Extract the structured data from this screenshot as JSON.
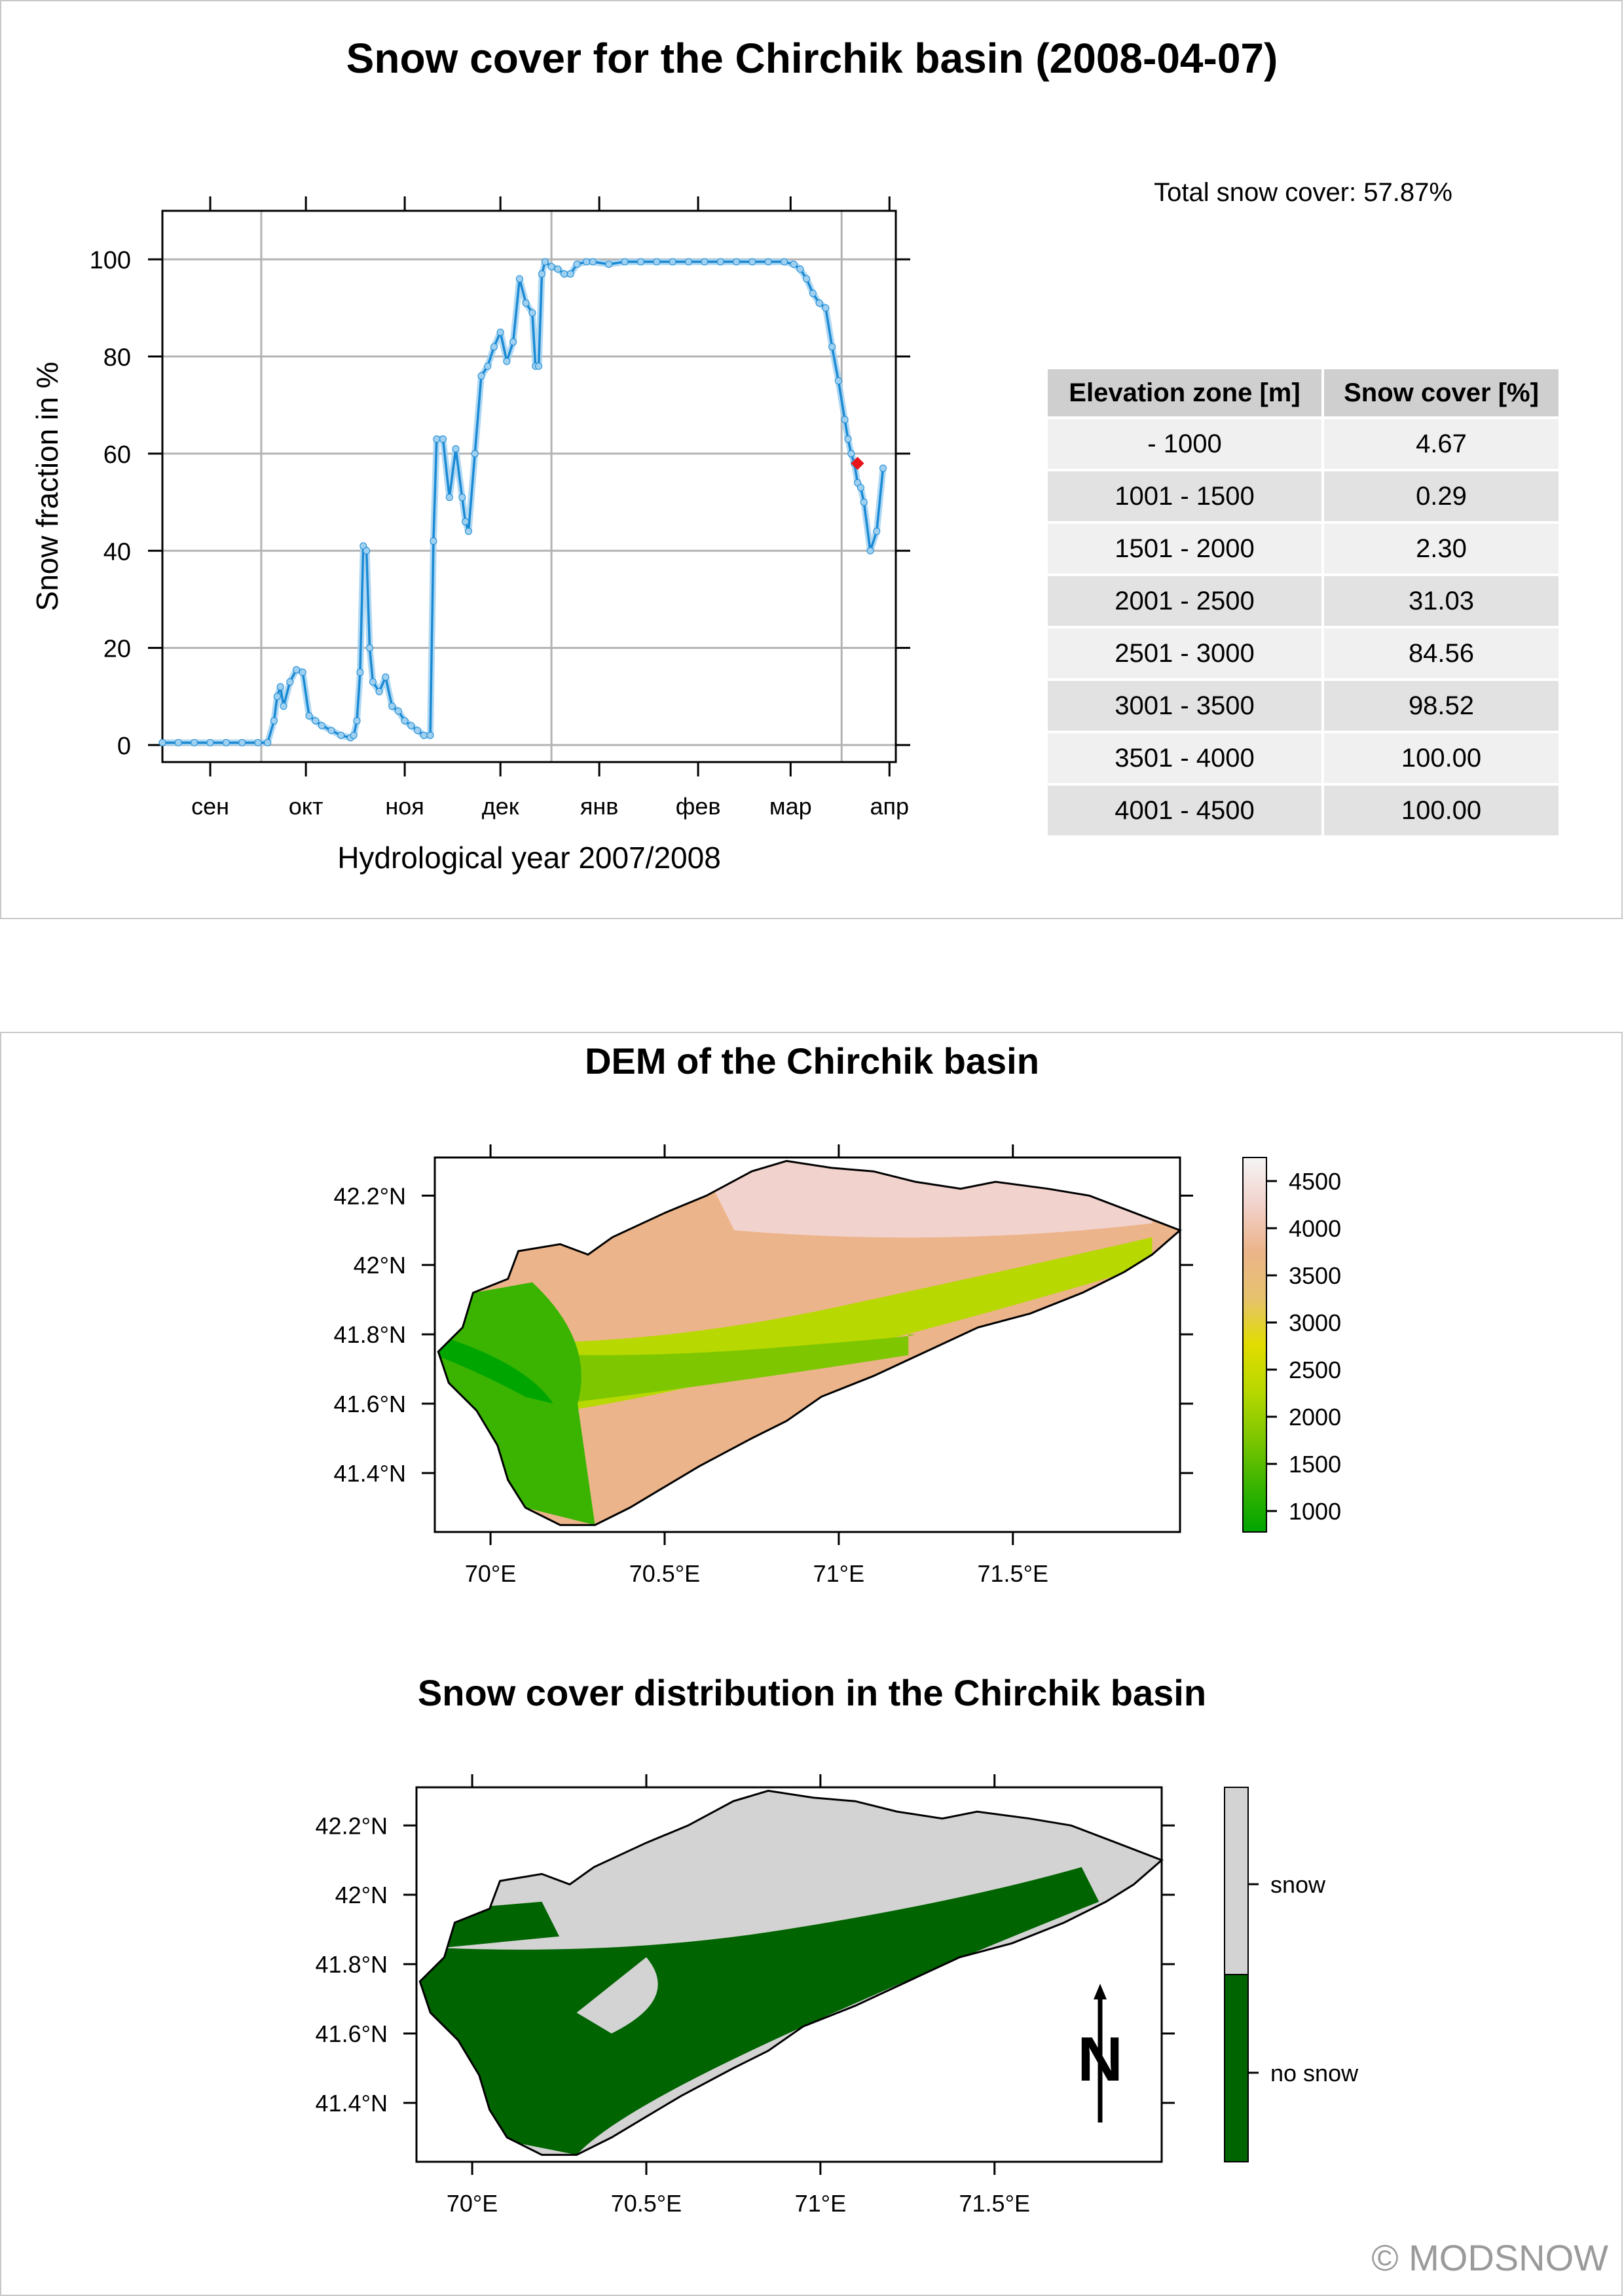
{
  "main_title": "Snow cover for the Chirchik basin (2008-04-07)",
  "total_snow_cover": "Total snow cover: 57.87%",
  "chart_data": [
    {
      "type": "line",
      "xlabel": "Hydrological year 2007/2008",
      "ylabel": "Snow fraction in %",
      "ylim": [
        0,
        110
      ],
      "yticks": [
        0,
        20,
        40,
        60,
        80,
        100
      ],
      "x_month_labels": [
        "сен",
        "окт",
        "ноя",
        "дек",
        "янв",
        "фев",
        "мар",
        "апр"
      ],
      "grid": true,
      "line_color": "#1a8ad4",
      "point_color": "#9fd0f0",
      "last_point_color": "#e8151b",
      "x_unit": "days since 2007-09-01",
      "series": [
        {
          "x": [
            0,
            5,
            10,
            15,
            20,
            25,
            30,
            33,
            35,
            36,
            37,
            38,
            40,
            42,
            44,
            46,
            48,
            50,
            53,
            56,
            59,
            60,
            61,
            62,
            63,
            64,
            65,
            66,
            68,
            70,
            72,
            74,
            76,
            78,
            80,
            82,
            84,
            85,
            86,
            88,
            90,
            92,
            94,
            95,
            96,
            98,
            100,
            102,
            104,
            106,
            108,
            110,
            112,
            114,
            116,
            117,
            118,
            119,
            120,
            122,
            124,
            126,
            128,
            130,
            133,
            135,
            140,
            145,
            150,
            155,
            160,
            165,
            170,
            175,
            180,
            185,
            190,
            195,
            198,
            200,
            202,
            204,
            206,
            208,
            210,
            212,
            214,
            215,
            216,
            217,
            218,
            219,
            220,
            222,
            224,
            226,
            218
          ],
          "y": [
            0.5,
            0.5,
            0.5,
            0.5,
            0.5,
            0.5,
            0.5,
            0.5,
            5,
            10,
            12,
            8,
            13,
            15.5,
            15,
            6,
            5,
            4,
            3,
            2,
            1.5,
            2,
            5,
            15,
            41,
            40,
            20,
            13,
            11,
            14,
            8,
            7,
            5,
            4,
            3,
            2,
            2,
            42,
            63,
            63,
            51,
            61,
            51,
            46,
            44,
            60,
            76,
            78,
            82,
            85,
            79,
            83,
            96,
            91,
            89,
            78,
            78,
            97,
            99.5,
            98.5,
            98,
            97,
            97,
            99,
            99.5,
            99.5,
            99,
            99.5,
            99.5,
            99.5,
            99.5,
            99.5,
            99.5,
            99.5,
            99.5,
            99.5,
            99.5,
            99.5,
            99,
            98,
            96,
            93,
            91,
            90,
            82,
            75,
            67,
            63,
            60,
            58,
            54,
            53,
            50,
            40,
            44,
            57,
            58
          ]
        }
      ]
    },
    {
      "type": "heatmap",
      "title": "DEM of the Chirchik basin",
      "x_tick_labels": [
        "70°E",
        "70.5°E",
        "71°E",
        "71.5°E"
      ],
      "y_tick_labels": [
        "42.2°N",
        "42°N",
        "41.8°N",
        "41.6°N",
        "41.4°N"
      ],
      "legend_ticks": [
        "4500",
        "4000",
        "3500",
        "3000",
        "2500",
        "2000",
        "1500",
        "1000"
      ],
      "colorscale": [
        "#00a500",
        "#3ab400",
        "#7ec600",
        "#b7d800",
        "#e1dc00",
        "#e6c26e",
        "#ecb48a",
        "#f2d2cc",
        "#f5f5f5"
      ]
    },
    {
      "type": "heatmap",
      "title": "Snow cover distribution in the Chirchik basin",
      "x_tick_labels": [
        "70°E",
        "70.5°E",
        "71°E",
        "71.5°E"
      ],
      "y_tick_labels": [
        "42.2°N",
        "42°N",
        "41.8°N",
        "41.6°N",
        "41.4°N"
      ],
      "legend": [
        {
          "label": "snow",
          "color": "#d3d3d3"
        },
        {
          "label": "no snow",
          "color": "#006400"
        }
      ],
      "north_arrow_label": "N"
    }
  ],
  "table": {
    "headers": [
      "Elevation zone [m]",
      "Snow cover [%]"
    ],
    "rows": [
      [
        "- 1000",
        "4.67"
      ],
      [
        "1001 - 1500",
        "0.29"
      ],
      [
        "1501 - 2000",
        "2.30"
      ],
      [
        "2001 - 2500",
        "31.03"
      ],
      [
        "2501 - 3000",
        "84.56"
      ],
      [
        "3001 - 3500",
        "98.52"
      ],
      [
        "3501 - 4000",
        "100.00"
      ],
      [
        "4001 - 4500",
        "100.00"
      ]
    ]
  },
  "copyright": "© MODSNOW"
}
